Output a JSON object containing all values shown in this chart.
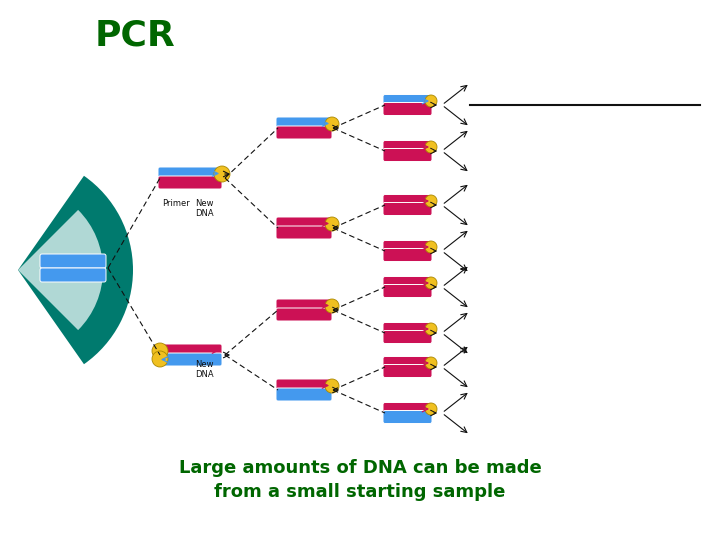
{
  "title": "PCR",
  "title_color": "#006600",
  "title_fontsize": 26,
  "subtitle_line1": "Large amounts of DNA can be made",
  "subtitle_line2": "from a small starting sample",
  "subtitle_color": "#006600",
  "subtitle_fontsize": 13,
  "bg_color": "#ffffff",
  "teal_dark": "#007a6e",
  "teal_light": "#b0d8d5",
  "blue": "#4499ee",
  "red": "#cc1155",
  "yellow": "#f0c020",
  "black": "#111111"
}
